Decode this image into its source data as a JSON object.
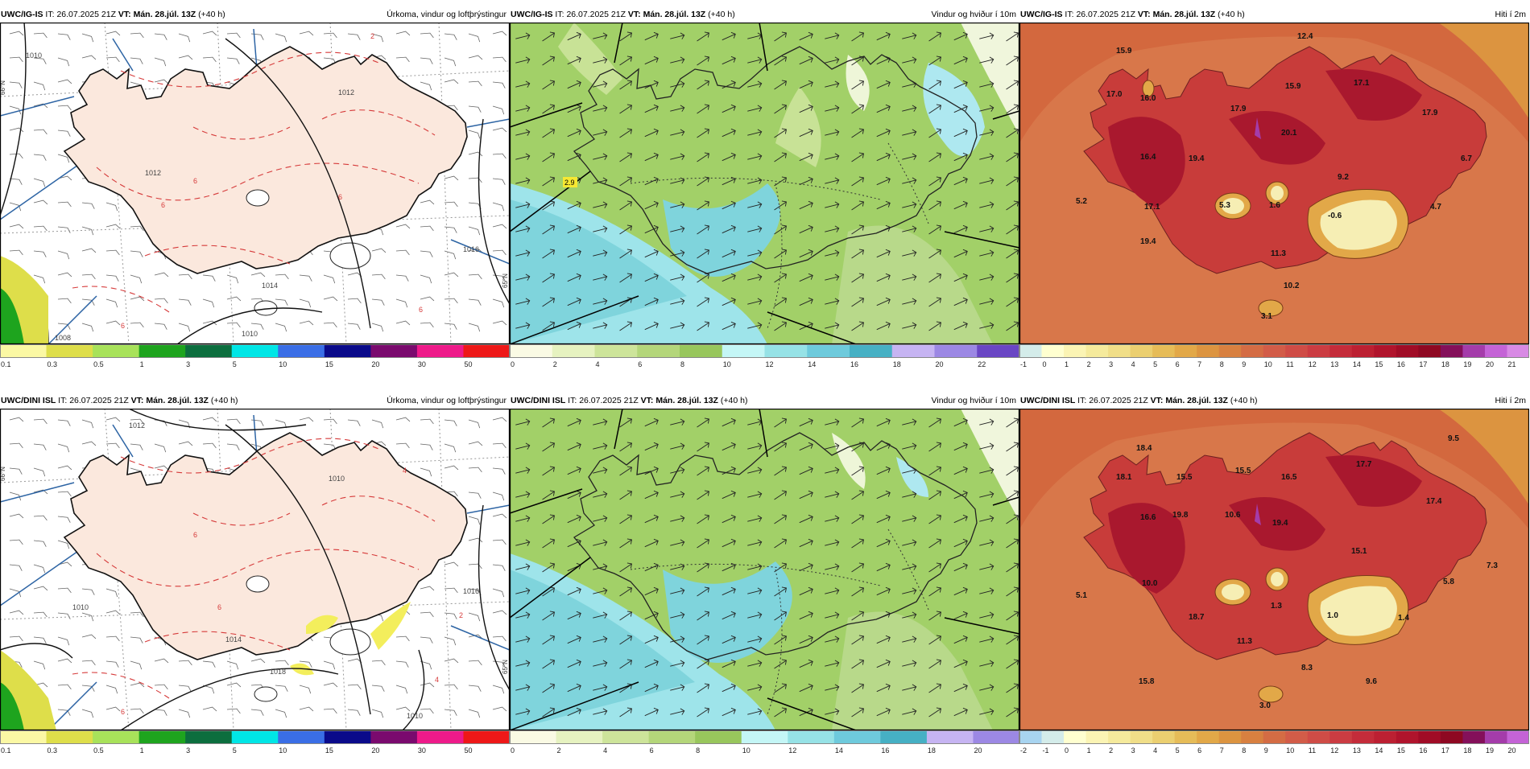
{
  "header": {
    "it_label": "IT:",
    "it_value": "26.07.2025 21Z",
    "vt_label": "VT:",
    "vt_value": "Mán. 28.júl. 13Z",
    "lead": "(+40 h)"
  },
  "rows": [
    {
      "model": "UWC/IG-IS"
    },
    {
      "model": "UWC/DINI ISL"
    }
  ],
  "titles": {
    "precip": "Úrkoma, vindur og loftþrýstingur",
    "wind": "Vindur og hviður í 10m",
    "temp": "Hiti í 2m"
  },
  "grid_labels": {
    "north66": "66°N",
    "north65": "65°N"
  },
  "colorbars": {
    "precip": {
      "labels": [
        "0.1",
        "0.3",
        "0.5",
        "1",
        "3",
        "5",
        "10",
        "15",
        "20",
        "30",
        "50"
      ],
      "colors": [
        "#fbf8a4",
        "#dede4a",
        "#a8e25a",
        "#1ea41e",
        "#0c6e3e",
        "#00e6e6",
        "#3a6ee6",
        "#0a0a8a",
        "#7a0a6e",
        "#ee1a8a",
        "#ee1818"
      ]
    },
    "wind_top": {
      "labels": [
        "0",
        "2",
        "4",
        "6",
        "8",
        "10",
        "12",
        "14",
        "16",
        "18",
        "20",
        "22"
      ],
      "colors": [
        "#fafae4",
        "#e6f2c0",
        "#cde49a",
        "#b4d67a",
        "#98c65c",
        "#c4f6f6",
        "#96e2e6",
        "#6ecadc",
        "#46b0c4",
        "#c6b4f2",
        "#9c88e4",
        "#6a46c4"
      ]
    },
    "wind_bottom": {
      "labels": [
        "0",
        "2",
        "4",
        "6",
        "8",
        "10",
        "12",
        "14",
        "16",
        "18",
        "20"
      ],
      "colors": [
        "#fafae4",
        "#e6f2c0",
        "#cde49a",
        "#b4d67a",
        "#98c65c",
        "#c4f6f6",
        "#96e2e6",
        "#6ecadc",
        "#46b0c4",
        "#c6b4f2",
        "#9c88e4"
      ]
    },
    "temp_top": {
      "labels": [
        "-1",
        "0",
        "1",
        "2",
        "3",
        "4",
        "5",
        "6",
        "7",
        "8",
        "9",
        "10",
        "11",
        "12",
        "13",
        "14",
        "15",
        "16",
        "17",
        "18",
        "19",
        "20",
        "21"
      ],
      "colors": [
        "#d4ecea",
        "#ffffd0",
        "#fbf4b4",
        "#f5ea9c",
        "#f0de88",
        "#ebcf70",
        "#e6bc58",
        "#e2a848",
        "#dc9440",
        "#d88040",
        "#d46c44",
        "#d25c48",
        "#cf4c46",
        "#cb3c42",
        "#c42c3a",
        "#bc2032",
        "#b0142c",
        "#a00c26",
        "#8e0822",
        "#84105a",
        "#a43caa",
        "#c463d6",
        "#d88ae4"
      ]
    },
    "temp_bottom": {
      "labels": [
        "-2",
        "-1",
        "0",
        "1",
        "2",
        "3",
        "4",
        "5",
        "6",
        "7",
        "8",
        "9",
        "10",
        "11",
        "12",
        "13",
        "14",
        "15",
        "16",
        "17",
        "18",
        "19",
        "20"
      ],
      "colors": [
        "#a8d4f0",
        "#d4ecea",
        "#ffffd0",
        "#fbf4b4",
        "#f5ea9c",
        "#f0de88",
        "#ebcf70",
        "#e6bc58",
        "#e2a848",
        "#dc9440",
        "#d88040",
        "#d46c44",
        "#d25c48",
        "#cf4c46",
        "#cb3c42",
        "#c42c3a",
        "#bc2032",
        "#b0142c",
        "#a00c26",
        "#8e0822",
        "#84105a",
        "#a43caa",
        "#c463d6"
      ]
    }
  },
  "precip_top": {
    "isobars": [
      "1010",
      "1012",
      "1012",
      "1014",
      "1016",
      "1008",
      "1010"
    ],
    "temp_labels": [
      "2",
      "6",
      "6",
      "6",
      "6",
      "6"
    ]
  },
  "precip_bottom": {
    "isobars": [
      "1012",
      "1010",
      "1010",
      "1016",
      "1014",
      "1018",
      "1010"
    ],
    "temp_labels": [
      "4",
      "6",
      "6",
      "6",
      "2",
      "4"
    ]
  },
  "wind_top": {
    "gust_labels": [
      "2.9"
    ]
  },
  "temp_top": {
    "stations": [
      "12.4",
      "15.9",
      "17.0",
      "16.0",
      "17.9",
      "15.9",
      "17.1",
      "17.9",
      "16.4",
      "19.4",
      "20.1",
      "6.7",
      "9.2",
      "5.2",
      "17.1",
      "5.3",
      "1.6",
      "4.7",
      "-0.6",
      "19.4",
      "11.3",
      "10.2",
      "3.1"
    ]
  },
  "temp_bottom": {
    "stations": [
      "9.5",
      "18.4",
      "17.7",
      "18.1",
      "15.5",
      "15.5",
      "16.5",
      "17.4",
      "16.6",
      "19.8",
      "10.6",
      "19.4",
      "15.1",
      "7.3",
      "5.1",
      "10.0",
      "5.8",
      "18.7",
      "1.3",
      "1.0",
      "1.4",
      "11.3",
      "8.3",
      "9.6",
      "15.8",
      "3.0"
    ]
  }
}
